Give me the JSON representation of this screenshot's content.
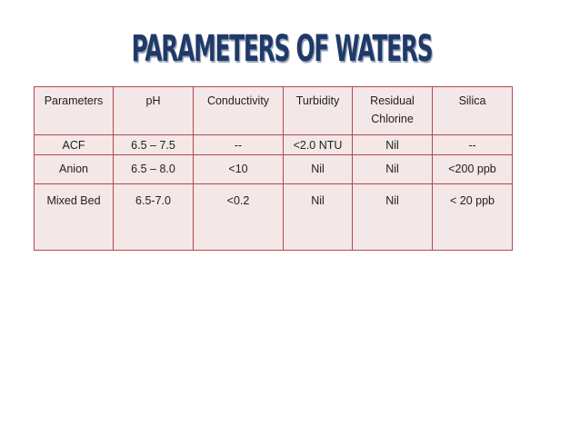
{
  "header": {
    "title": "PARAMETERS OF WATERS"
  },
  "table": {
    "columns": [
      "Parameters",
      "pH",
      "Conductivity",
      "Turbidity",
      "Residual Chlorine",
      "Silica"
    ],
    "rows": [
      [
        "ACF",
        "6.5 – 7.5",
        "--",
        "<2.0 NTU",
        "Nil",
        "--"
      ],
      [
        "Anion",
        "6.5 – 8.0",
        "<10",
        "Nil",
        "Nil",
        "<200 ppb"
      ],
      [
        "Mixed Bed",
        "6.5-7.0",
        "<0.2",
        "Nil",
        "Nil",
        "< 20 ppb"
      ]
    ]
  }
}
